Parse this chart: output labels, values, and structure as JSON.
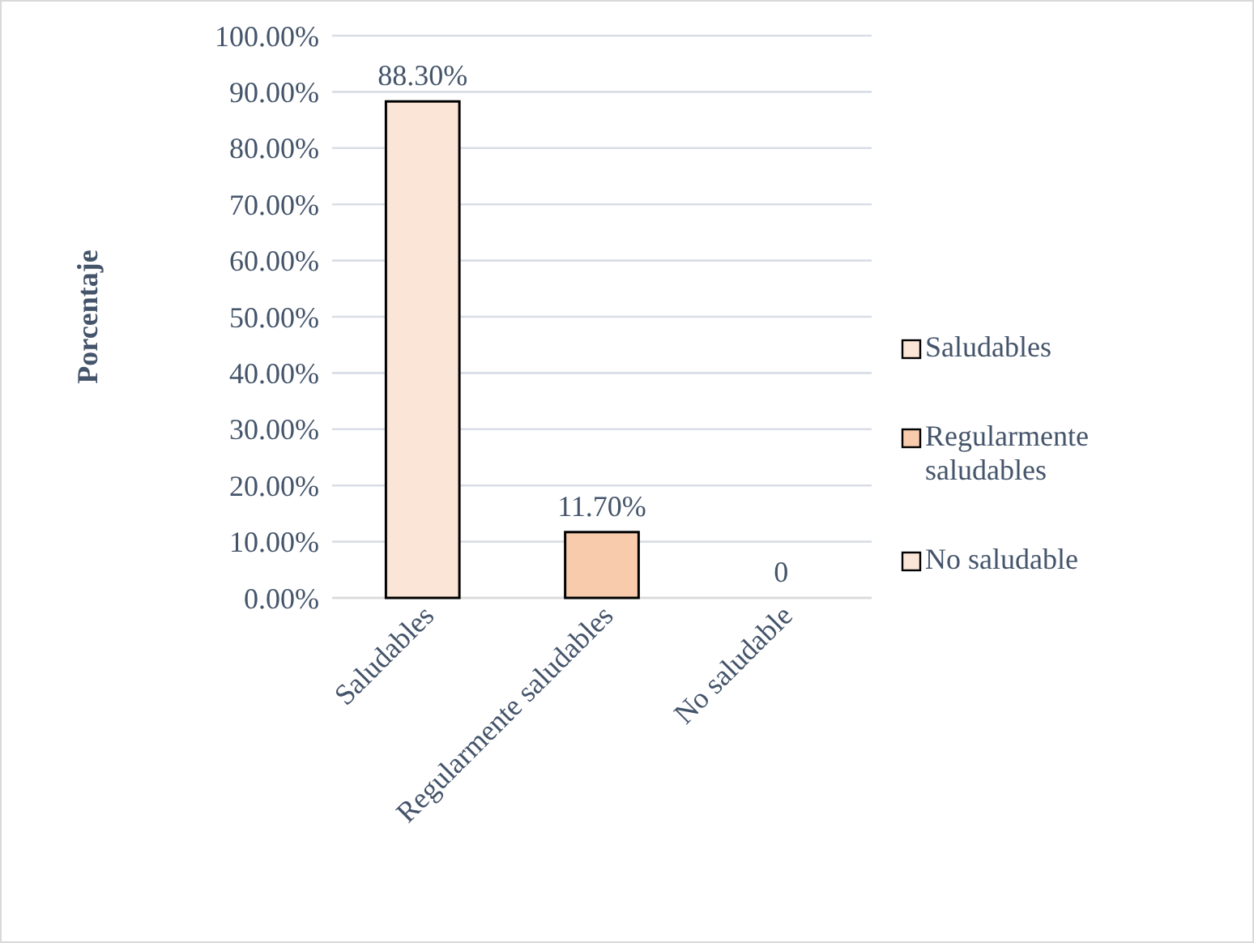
{
  "chart_data": {
    "type": "bar",
    "ylabel": "Porcentaje",
    "categories": [
      "Saludables",
      "Regularmente saludables",
      "No saludable"
    ],
    "series": [
      {
        "name": "Saludables",
        "color": "#fbe5d6",
        "values": [
          88.3,
          null,
          null
        ],
        "value_labels": [
          "88.30%",
          null,
          null
        ]
      },
      {
        "name": "Regularmente saludables",
        "color": "#f8cbad",
        "values": [
          null,
          11.7,
          null
        ],
        "value_labels": [
          null,
          "11.70%",
          null
        ]
      },
      {
        "name": "No saludable",
        "color": "#fbe5d6",
        "values": [
          null,
          null,
          0
        ],
        "value_labels": [
          null,
          null,
          "0"
        ]
      }
    ],
    "ylim": [
      0,
      100
    ],
    "yticks": [
      {
        "value": 0,
        "label": "0.00%"
      },
      {
        "value": 10,
        "label": "10.00%"
      },
      {
        "value": 20,
        "label": "20.00%"
      },
      {
        "value": 30,
        "label": "30.00%"
      },
      {
        "value": 40,
        "label": "40.00%"
      },
      {
        "value": 50,
        "label": "50.00%"
      },
      {
        "value": 60,
        "label": "60.00%"
      },
      {
        "value": 70,
        "label": "70.00%"
      },
      {
        "value": 80,
        "label": "80.00%"
      },
      {
        "value": 90,
        "label": "90.00%"
      },
      {
        "value": 100,
        "label": "100.00%"
      }
    ],
    "grid": "y",
    "legend": "right"
  }
}
